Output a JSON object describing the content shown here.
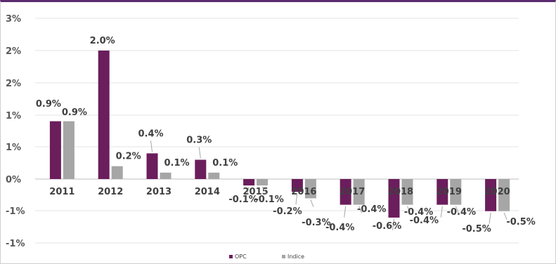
{
  "chart_data": {
    "type": "bar",
    "categories": [
      "2011",
      "2012",
      "2013",
      "2014",
      "2015",
      "2016",
      "2017",
      "2018",
      "2019",
      "2020"
    ],
    "series": [
      {
        "name": "OPC",
        "color": "#6b1d5c",
        "values": [
          0.9,
          2.0,
          0.4,
          0.3,
          -0.1,
          -0.2,
          -0.4,
          -0.6,
          -0.4,
          -0.5
        ],
        "labels": [
          "0.9%",
          "2.0%",
          "0.4%",
          "0.3%",
          "-0.1%",
          "-0.2%",
          "-0.4%",
          "-0.6%",
          "-0.4%",
          "-0.5%"
        ]
      },
      {
        "name": "Indice",
        "color": "#a6a6a6",
        "values": [
          0.9,
          0.2,
          0.1,
          0.1,
          -0.1,
          -0.3,
          -0.4,
          -0.4,
          -0.4,
          -0.5
        ],
        "labels": [
          "0.9%",
          "0.2%",
          "0.1%",
          "0.1%",
          "-0.1%",
          "-0.3%",
          "-0.4%",
          "-0.4%",
          "-0.4%",
          "-0.5%"
        ]
      }
    ],
    "yticks": [
      "3%",
      "2%",
      "2%",
      "1%",
      "1%",
      "0%",
      "-1%",
      "-1%"
    ],
    "ylim": [
      -1.0,
      2.5
    ],
    "grid": true,
    "legend_position": "bottom",
    "title": "",
    "xlabel": "",
    "ylabel": ""
  }
}
